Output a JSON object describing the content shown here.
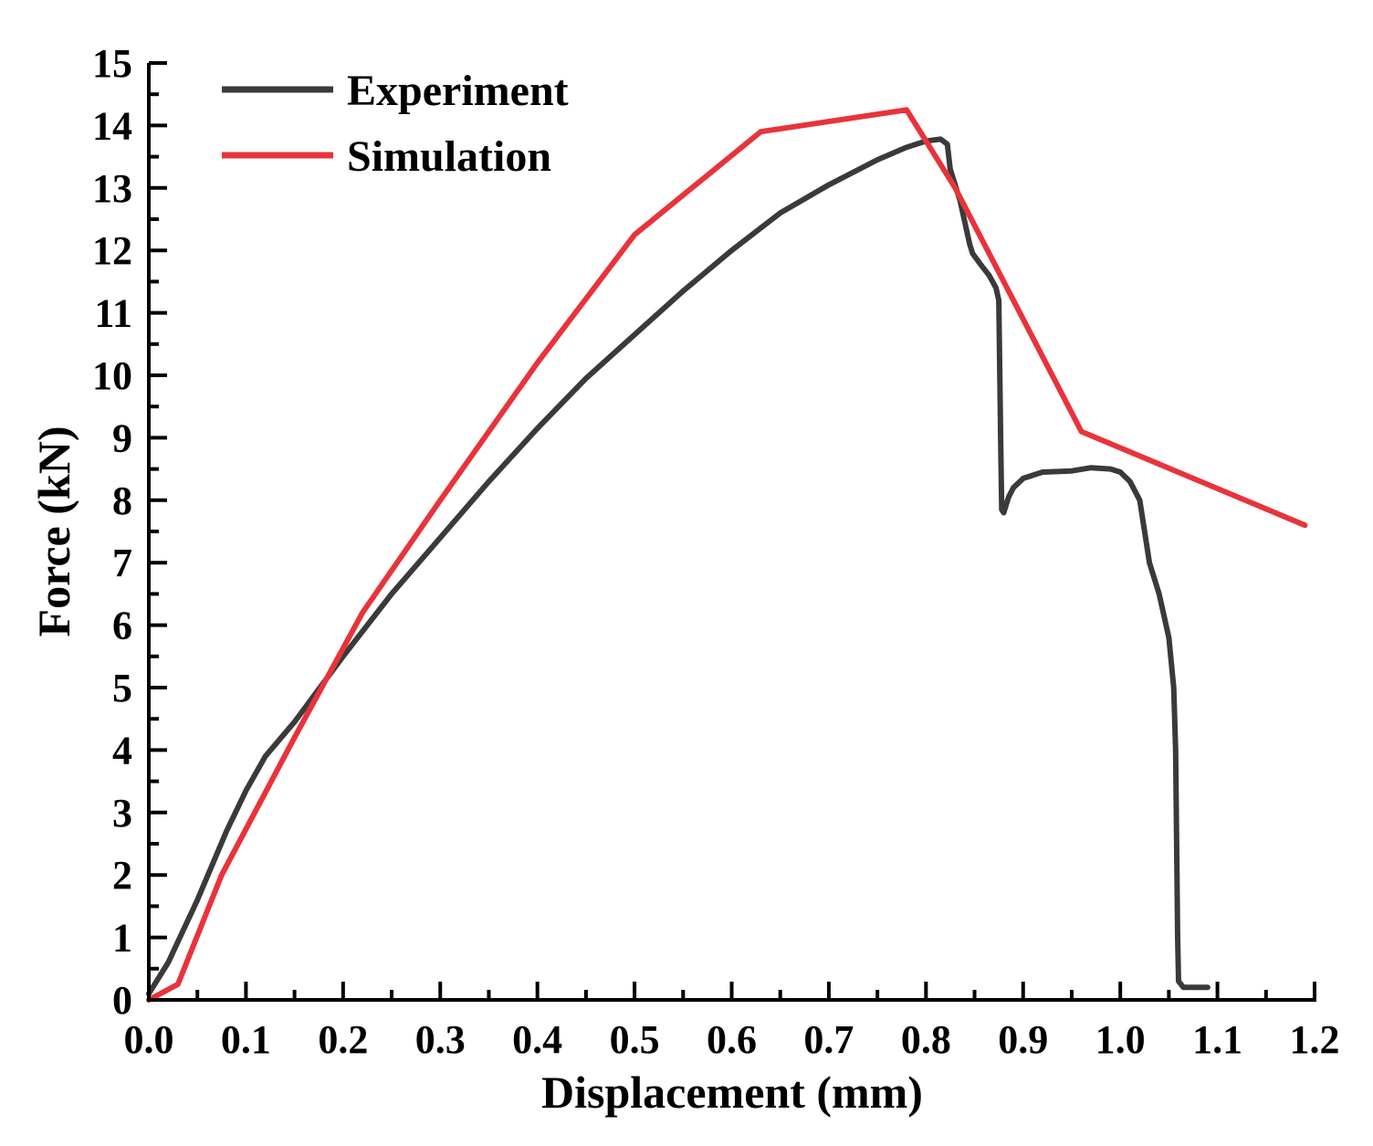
{
  "chart_data": {
    "type": "line",
    "title": "",
    "xlabel": "Displacement (mm)",
    "ylabel": "Force (kN)",
    "xlim": [
      0.0,
      1.2
    ],
    "ylim": [
      0,
      15
    ],
    "x_ticks": [
      "0.0",
      "0.1",
      "0.2",
      "0.3",
      "0.4",
      "0.5",
      "0.6",
      "0.7",
      "0.8",
      "0.9",
      "1.0",
      "1.1",
      "1.2"
    ],
    "y_ticks": [
      "0",
      "1",
      "2",
      "3",
      "4",
      "5",
      "6",
      "7",
      "8",
      "9",
      "10",
      "11",
      "12",
      "13",
      "14",
      "15"
    ],
    "grid": false,
    "legend_position": "top-left",
    "series": [
      {
        "name": "Experiment",
        "color": "#3a3a3a",
        "x": [
          0.0,
          0.02,
          0.05,
          0.08,
          0.1,
          0.12,
          0.15,
          0.2,
          0.25,
          0.3,
          0.35,
          0.4,
          0.45,
          0.5,
          0.55,
          0.6,
          0.65,
          0.7,
          0.75,
          0.78,
          0.8,
          0.815,
          0.822,
          0.825,
          0.835,
          0.845,
          0.848,
          0.855,
          0.865,
          0.872,
          0.875,
          0.876,
          0.877,
          0.878,
          0.88,
          0.885,
          0.89,
          0.9,
          0.92,
          0.95,
          0.97,
          0.99,
          1.0,
          1.01,
          1.02,
          1.025,
          1.03,
          1.04,
          1.05,
          1.055,
          1.057,
          1.058,
          1.059,
          1.06,
          1.065,
          1.09
        ],
        "y": [
          0.1,
          0.6,
          1.6,
          2.7,
          3.35,
          3.9,
          4.45,
          5.5,
          6.5,
          7.4,
          8.3,
          9.15,
          9.95,
          10.65,
          11.35,
          12.0,
          12.6,
          13.05,
          13.45,
          13.65,
          13.75,
          13.78,
          13.7,
          13.3,
          12.8,
          12.1,
          11.95,
          11.8,
          11.6,
          11.4,
          11.2,
          10.0,
          8.8,
          7.85,
          7.8,
          8.05,
          8.2,
          8.35,
          8.45,
          8.47,
          8.52,
          8.5,
          8.45,
          8.3,
          8.0,
          7.5,
          7.0,
          6.5,
          5.8,
          5.0,
          4.0,
          2.5,
          1.0,
          0.3,
          0.2,
          0.2
        ]
      },
      {
        "name": "Simulation",
        "color": "#e8333b",
        "x": [
          0.0,
          0.03,
          0.075,
          0.15,
          0.22,
          0.3,
          0.4,
          0.5,
          0.63,
          0.78,
          0.83,
          0.96,
          1.19
        ],
        "y": [
          0.0,
          0.25,
          2.0,
          4.2,
          6.2,
          8.0,
          10.2,
          12.25,
          13.9,
          14.25,
          13.0,
          9.1,
          7.6
        ]
      }
    ]
  }
}
